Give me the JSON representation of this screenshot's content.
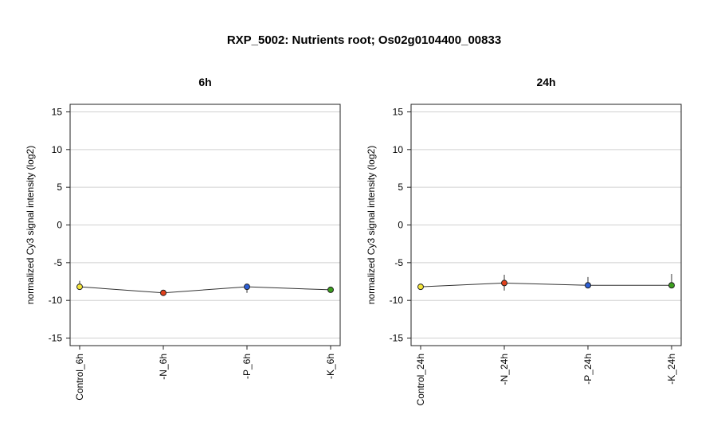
{
  "title": "RXP_5002: Nutrients root; Os02g0104400_00833",
  "chart_data": [
    {
      "type": "line",
      "title": "6h",
      "ylabel": "normalized Cy3 signal intensity (log2)",
      "ylim": [
        -16,
        16
      ],
      "yticks": [
        -15,
        -10,
        -5,
        0,
        5,
        10,
        15
      ],
      "grid": true,
      "categories": [
        "Control_6h",
        "-N_6h",
        "-P_6h",
        "-K_6h"
      ],
      "values": [
        -8.2,
        -9.0,
        -8.2,
        -8.6
      ],
      "err_low": [
        -8.6,
        -9.2,
        -9.0,
        -9.0
      ],
      "err_high": [
        -7.4,
        -8.8,
        -7.8,
        -8.2
      ],
      "colors": [
        "#f5e63a",
        "#e0401c",
        "#2c5fd6",
        "#3ca01e"
      ]
    },
    {
      "type": "line",
      "title": "24h",
      "ylabel": "normalized Cy3 signal intensity (log2)",
      "ylim": [
        -16,
        16
      ],
      "yticks": [
        -15,
        -10,
        -5,
        0,
        5,
        10,
        15
      ],
      "grid": true,
      "categories": [
        "Control_24h",
        "-N_24h",
        "-P_24h",
        "-K_24h"
      ],
      "values": [
        -8.2,
        -7.7,
        -8.0,
        -8.0
      ],
      "err_low": [
        -8.4,
        -8.7,
        -8.4,
        -8.3
      ],
      "err_high": [
        -8.0,
        -6.6,
        -6.9,
        -6.5
      ],
      "colors": [
        "#f5e63a",
        "#e0401c",
        "#2c5fd6",
        "#3ca01e"
      ]
    }
  ]
}
